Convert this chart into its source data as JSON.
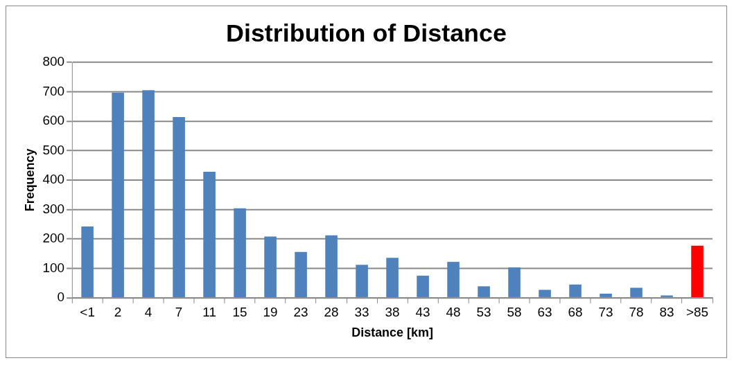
{
  "chart_data": {
    "type": "bar",
    "title": "Distribution of Distance",
    "xlabel": "Distance [km]",
    "ylabel": "Frequency",
    "categories": [
      "<1",
      "2",
      "4",
      "7",
      "11",
      "15",
      "19",
      "23",
      "28",
      "33",
      "38",
      "43",
      "48",
      "53",
      "58",
      "63",
      "68",
      "73",
      "78",
      "83",
      ">85"
    ],
    "values": [
      242,
      697,
      705,
      614,
      428,
      304,
      208,
      156,
      212,
      112,
      136,
      75,
      122,
      39,
      103,
      27,
      45,
      14,
      34,
      8,
      177
    ],
    "colors": [
      "#4f81bd",
      "#4f81bd",
      "#4f81bd",
      "#4f81bd",
      "#4f81bd",
      "#4f81bd",
      "#4f81bd",
      "#4f81bd",
      "#4f81bd",
      "#4f81bd",
      "#4f81bd",
      "#4f81bd",
      "#4f81bd",
      "#4f81bd",
      "#4f81bd",
      "#4f81bd",
      "#4f81bd",
      "#4f81bd",
      "#4f81bd",
      "#4f81bd",
      "#ff0000"
    ],
    "ylim": [
      0,
      800
    ],
    "yticks": [
      0,
      100,
      200,
      300,
      400,
      500,
      600,
      700,
      800
    ],
    "grid": "y",
    "legend": false
  }
}
